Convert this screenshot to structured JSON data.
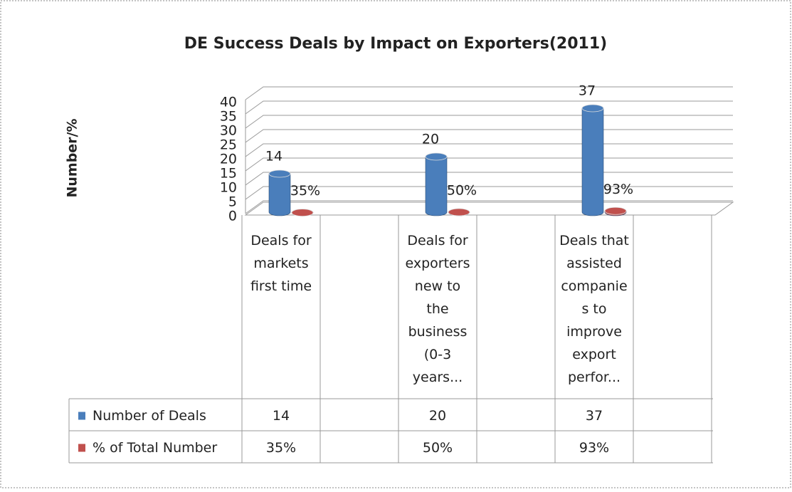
{
  "chart_data": {
    "type": "bar3d",
    "title": "DE Success Deals by Impact on Exporters(2011)",
    "y_label": "Number/%",
    "categories": [
      "Deals for markets first time",
      null,
      "Deals for exporters new to the business (0-3 years...",
      null,
      "Deals that assisted companies to improve export perfor...",
      null
    ],
    "series": [
      {
        "name": "Number of Deals",
        "color": "#4a7ebb",
        "values": [
          14,
          null,
          20,
          null,
          37,
          null
        ]
      },
      {
        "name": "% of Total Number",
        "color": "#c0504d",
        "values": [
          0.35,
          null,
          0.5,
          null,
          0.93,
          null
        ],
        "value_labels": [
          "35%",
          null,
          "50%",
          null,
          "93%",
          null
        ]
      }
    ],
    "ylim": [
      0,
      40
    ],
    "yticks": [
      0,
      5,
      10,
      15,
      20,
      25,
      30,
      35,
      40
    ],
    "grid": true,
    "data_table": true
  }
}
